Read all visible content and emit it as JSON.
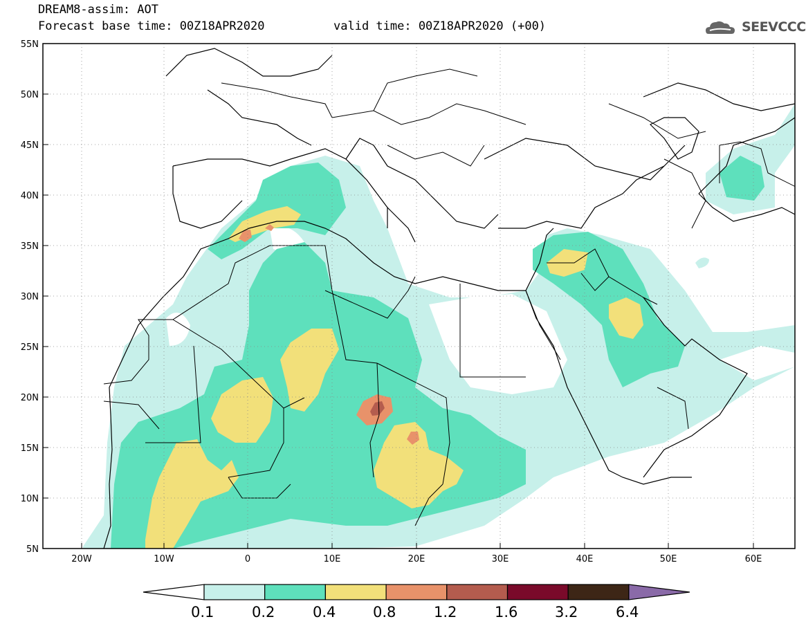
{
  "header": {
    "title": "DREAM8-assim: AOT",
    "base_time": "Forecast base time: 00Z18APR2020",
    "valid_time": "valid time: 00Z18APR2020 (+00)",
    "logo_text": "SEEVCCC"
  },
  "map": {
    "lat_labels": [
      "55N",
      "50N",
      "45N",
      "40N",
      "35N",
      "30N",
      "25N",
      "20N",
      "15N",
      "10N",
      "5N"
    ],
    "lon_labels": [
      "20W",
      "10W",
      "0",
      "10E",
      "20E",
      "30E",
      "40E",
      "50E",
      "60E"
    ]
  },
  "colorbar": {
    "labels": [
      "0.1",
      "0.2",
      "0.4",
      "0.8",
      "1.2",
      "1.6",
      "3.2",
      "6.4"
    ],
    "colors": [
      "#ffffff",
      "#c7f0ea",
      "#5ee0bc",
      "#f2e07a",
      "#e8926a",
      "#b45c4e",
      "#7a0a2a",
      "#3d2616",
      "#8a6aa8"
    ]
  }
}
